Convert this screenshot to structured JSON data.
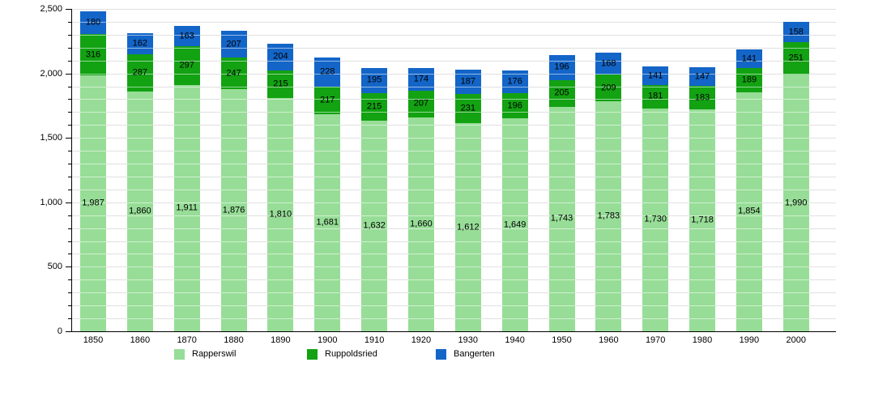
{
  "chart_data": {
    "type": "bar",
    "stacked": true,
    "title": "",
    "xlabel": "",
    "ylabel": "",
    "categories": [
      "1850",
      "1860",
      "1870",
      "1880",
      "1890",
      "1900",
      "1910",
      "1920",
      "1930",
      "1940",
      "1950",
      "1960",
      "1970",
      "1980",
      "1990",
      "2000"
    ],
    "series": [
      {
        "name": "Rapperswil",
        "color": "#97dd97",
        "values": [
          1987,
          1860,
          1911,
          1876,
          1810,
          1681,
          1632,
          1660,
          1612,
          1649,
          1743,
          1783,
          1730,
          1718,
          1854,
          1990
        ]
      },
      {
        "name": "Ruppoldsried",
        "color": "#12a212",
        "values": [
          316,
          287,
          297,
          247,
          215,
          217,
          215,
          207,
          231,
          196,
          205,
          209,
          181,
          183,
          189,
          251
        ]
      },
      {
        "name": "Bangerten",
        "color": "#1365c8",
        "values": [
          180,
          162,
          163,
          207,
          204,
          228,
          195,
          174,
          187,
          176,
          196,
          168,
          141,
          147,
          141,
          158
        ]
      }
    ],
    "ylim": [
      0,
      2500
    ],
    "y_major_ticks": [
      0,
      500,
      1000,
      1500,
      2000,
      2500
    ],
    "y_minor_step": 100,
    "grid": true,
    "legend_position": "bottom",
    "colors": {
      "axis": "#000000",
      "gridline": "#e0e0e0",
      "label_text": "#000000"
    }
  }
}
